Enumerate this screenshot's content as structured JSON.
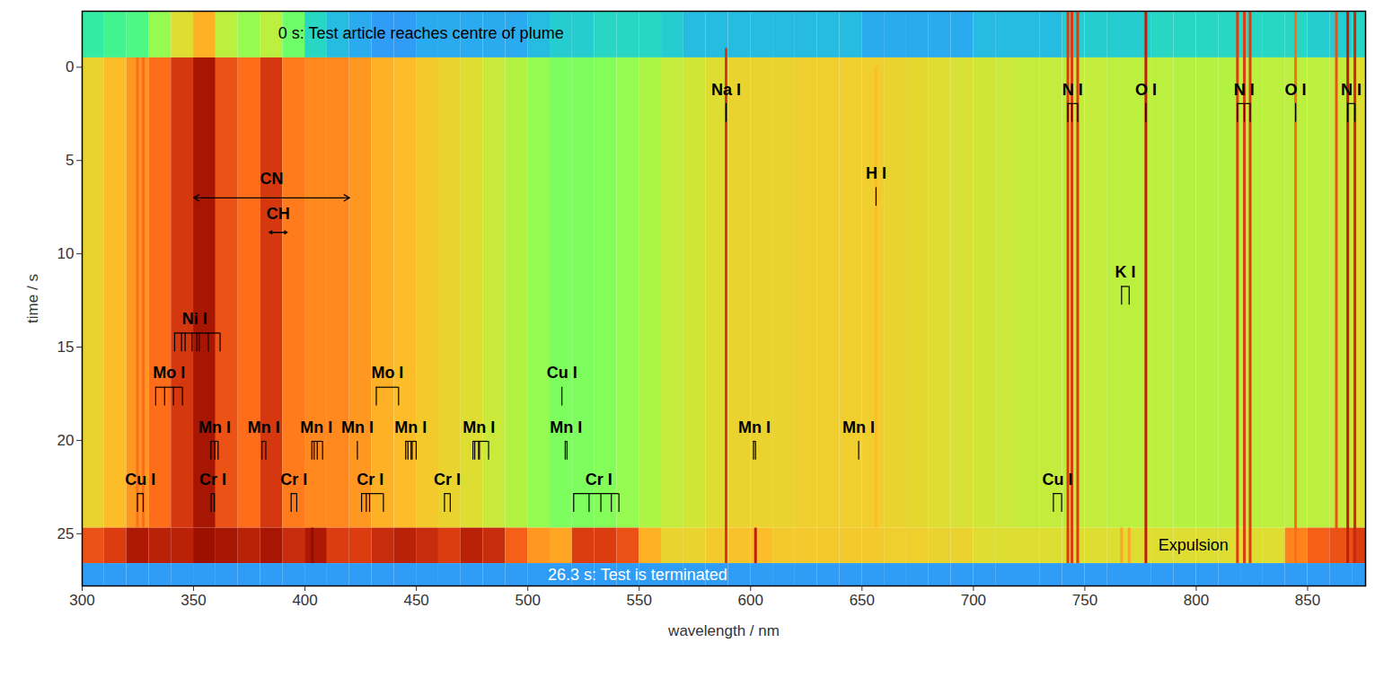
{
  "chart_data": {
    "type": "heatmap",
    "x_label": "wavelength / nm",
    "y_label": "time / s",
    "xlim": [
      300,
      876
    ],
    "xticks": [
      300,
      350,
      400,
      450,
      500,
      550,
      600,
      650,
      700,
      750,
      800,
      850
    ],
    "ylim": [
      -3,
      27.8
    ],
    "yticks": [
      0,
      5,
      10,
      15,
      20,
      25
    ],
    "zlim": [
      0,
      1
    ],
    "wavelength_bins": [
      300,
      310,
      320,
      330,
      340,
      350,
      360,
      370,
      380,
      390,
      400,
      410,
      420,
      430,
      440,
      450,
      460,
      470,
      480,
      490,
      500,
      510,
      520,
      530,
      540,
      550,
      560,
      570,
      580,
      590,
      600,
      610,
      620,
      630,
      640,
      650,
      660,
      670,
      680,
      690,
      700,
      710,
      720,
      730,
      740,
      750,
      760,
      770,
      780,
      790,
      800,
      810,
      820,
      830,
      840,
      850,
      860,
      870,
      876
    ],
    "segments": [
      {
        "t0": -3,
        "t1": -0.5,
        "values": [
          0.35,
          0.38,
          0.4,
          0.5,
          0.6,
          0.68,
          0.55,
          0.5,
          0.55,
          0.45,
          0.3,
          0.25,
          0.22,
          0.2,
          0.2,
          0.22,
          0.22,
          0.22,
          0.22,
          0.22,
          0.25,
          0.28,
          0.28,
          0.3,
          0.3,
          0.3,
          0.28,
          0.25,
          0.25,
          0.25,
          0.25,
          0.25,
          0.25,
          0.25,
          0.25,
          0.22,
          0.22,
          0.22,
          0.22,
          0.22,
          0.25,
          0.25,
          0.25,
          0.25,
          0.28,
          0.28,
          0.28,
          0.28,
          0.3,
          0.3,
          0.3,
          0.3,
          0.3,
          0.3,
          0.3,
          0.28,
          0.28,
          0.3
        ]
      },
      {
        "t0": -0.5,
        "t1": 24.7,
        "values": [
          0.62,
          0.66,
          0.72,
          0.78,
          0.86,
          0.93,
          0.82,
          0.78,
          0.86,
          0.76,
          0.74,
          0.74,
          0.72,
          0.68,
          0.66,
          0.64,
          0.62,
          0.6,
          0.57,
          0.54,
          0.5,
          0.47,
          0.47,
          0.48,
          0.5,
          0.53,
          0.56,
          0.58,
          0.6,
          0.62,
          0.62,
          0.62,
          0.63,
          0.63,
          0.63,
          0.63,
          0.62,
          0.61,
          0.6,
          0.59,
          0.58,
          0.57,
          0.56,
          0.56,
          0.56,
          0.56,
          0.55,
          0.55,
          0.55,
          0.54,
          0.54,
          0.54,
          0.55,
          0.55,
          0.55,
          0.55,
          0.56,
          0.6
        ]
      },
      {
        "t0": 24.7,
        "t1": 26.6,
        "values": [
          0.82,
          0.85,
          0.92,
          0.9,
          0.9,
          0.95,
          0.93,
          0.9,
          0.93,
          0.88,
          0.92,
          0.85,
          0.85,
          0.88,
          0.9,
          0.88,
          0.85,
          0.9,
          0.88,
          0.8,
          0.72,
          0.7,
          0.85,
          0.85,
          0.82,
          0.68,
          0.62,
          0.62,
          0.64,
          0.65,
          0.66,
          0.64,
          0.64,
          0.64,
          0.64,
          0.64,
          0.63,
          0.63,
          0.62,
          0.62,
          0.6,
          0.6,
          0.6,
          0.6,
          0.6,
          0.6,
          0.6,
          0.6,
          0.6,
          0.6,
          0.6,
          0.6,
          0.6,
          0.6,
          0.75,
          0.8,
          0.82,
          0.85
        ]
      },
      {
        "t0": 26.6,
        "t1": 27.8,
        "values": [
          0.2,
          0.2,
          0.2,
          0.2,
          0.2,
          0.2,
          0.2,
          0.2,
          0.2,
          0.2,
          0.2,
          0.2,
          0.2,
          0.2,
          0.2,
          0.2,
          0.2,
          0.2,
          0.2,
          0.2,
          0.2,
          0.2,
          0.2,
          0.2,
          0.2,
          0.2,
          0.2,
          0.2,
          0.2,
          0.2,
          0.2,
          0.2,
          0.2,
          0.2,
          0.2,
          0.2,
          0.2,
          0.2,
          0.2,
          0.2,
          0.2,
          0.2,
          0.2,
          0.2,
          0.2,
          0.2,
          0.2,
          0.2,
          0.2,
          0.2,
          0.2,
          0.2,
          0.2,
          0.2,
          0.2,
          0.2,
          0.2,
          0.2
        ]
      }
    ],
    "lines": [
      {
        "wavelength": 324.8,
        "t0": -0.5,
        "t1": 24.7,
        "value": 0.78
      },
      {
        "wavelength": 327.4,
        "t0": -0.5,
        "t1": 24.7,
        "value": 0.78
      },
      {
        "wavelength": 403.3,
        "t0": 24.7,
        "t1": 26.6,
        "value": 0.98
      },
      {
        "wavelength": 589.0,
        "t0": -1,
        "t1": 26.6,
        "value": 0.86
      },
      {
        "wavelength": 602.2,
        "t0": 24.7,
        "t1": 26.6,
        "value": 0.9
      },
      {
        "wavelength": 656.3,
        "t0": 0,
        "t1": 24.7,
        "value": 0.66
      },
      {
        "wavelength": 742.4,
        "t0": -3,
        "t1": 26.6,
        "value": 0.85
      },
      {
        "wavelength": 744.2,
        "t0": -3,
        "t1": 26.6,
        "value": 0.85
      },
      {
        "wavelength": 746.8,
        "t0": -3,
        "t1": 26.6,
        "value": 0.85
      },
      {
        "wavelength": 766.5,
        "t0": 24.7,
        "t1": 26.6,
        "value": 0.7
      },
      {
        "wavelength": 769.9,
        "t0": 24.7,
        "t1": 26.6,
        "value": 0.7
      },
      {
        "wavelength": 777.4,
        "t0": -3,
        "t1": 26.6,
        "value": 0.9
      },
      {
        "wavelength": 818.5,
        "t0": -3,
        "t1": 26.6,
        "value": 0.85
      },
      {
        "wavelength": 821.6,
        "t0": -3,
        "t1": 26.6,
        "value": 0.85
      },
      {
        "wavelength": 824.2,
        "t0": -3,
        "t1": 26.6,
        "value": 0.85
      },
      {
        "wavelength": 844.6,
        "t0": -3,
        "t1": 26.6,
        "value": 0.78
      },
      {
        "wavelength": 862.9,
        "t0": -3,
        "t1": 26.6,
        "value": 0.82
      },
      {
        "wavelength": 868.0,
        "t0": -3,
        "t1": 26.6,
        "value": 0.9
      },
      {
        "wavelength": 871.2,
        "t0": -3,
        "t1": 26.6,
        "value": 0.88
      }
    ],
    "annotations": [
      {
        "label": "Na I",
        "t": 1.2,
        "wavelengths": [
          589.0
        ]
      },
      {
        "label": "N I",
        "t": 1.2,
        "wavelengths": [
          742.4,
          744.2,
          746.8
        ]
      },
      {
        "label": "O I",
        "t": 1.2,
        "wavelengths": [
          777.4
        ]
      },
      {
        "label": "N I",
        "t": 1.2,
        "wavelengths": [
          818.5,
          821.6,
          824.2
        ]
      },
      {
        "label": "O I",
        "t": 1.2,
        "wavelengths": [
          844.6
        ]
      },
      {
        "label": "N I",
        "t": 1.2,
        "wavelengths": [
          868.0,
          871.2
        ]
      },
      {
        "label": "H I",
        "t": 5.7,
        "wavelengths": [
          656.3
        ]
      },
      {
        "label": "K I",
        "t": 11.0,
        "wavelengths": [
          766.5,
          769.9
        ]
      },
      {
        "label": "Ni I",
        "t": 13.5,
        "wavelengths": [
          341.5,
          344.6,
          346.2,
          349.3,
          351.5,
          352.5,
          356.6,
          361.9
        ]
      },
      {
        "label": "Mo I",
        "t": 16.4,
        "wavelengths": [
          333.0,
          337.0,
          341.0,
          345.0
        ]
      },
      {
        "label": "Mo I",
        "t": 16.4,
        "wavelengths": [
          432.0,
          442.0
        ]
      },
      {
        "label": "Cu I",
        "t": 16.4,
        "wavelengths": [
          515.3
        ]
      },
      {
        "label": "Mn I",
        "t": 19.3,
        "wavelengths": [
          357.8,
          359.5,
          361.0
        ]
      },
      {
        "label": "Mn I",
        "t": 19.3,
        "wavelengths": [
          380.7,
          382.4
        ]
      },
      {
        "label": "Mn I",
        "t": 19.3,
        "wavelengths": [
          403.1,
          404.1,
          405.5,
          407.9
        ]
      },
      {
        "label": "Mn I",
        "t": 19.3,
        "wavelengths": [
          423.5
        ]
      },
      {
        "label": "Mn I",
        "t": 19.3,
        "wavelengths": [
          445.2,
          446.2,
          447.6,
          448.1,
          449.9
        ]
      },
      {
        "label": "Mn I",
        "t": 19.3,
        "wavelengths": [
          475.4,
          476.2,
          477.9,
          478.3,
          482.4
        ]
      },
      {
        "label": "Mn I",
        "t": 19.3,
        "wavelengths": [
          516.8,
          517.6
        ]
      },
      {
        "label": "Mn I",
        "t": 19.3,
        "wavelengths": [
          601.3,
          602.2
        ]
      },
      {
        "label": "Mn I",
        "t": 19.3,
        "wavelengths": [
          648.5
        ]
      },
      {
        "label": "Cu I",
        "t": 22.1,
        "wavelengths": [
          324.8,
          327.4
        ]
      },
      {
        "label": "Cr I",
        "t": 22.1,
        "wavelengths": [
          357.9,
          359.3
        ]
      },
      {
        "label": "Cr I",
        "t": 22.1,
        "wavelengths": [
          393.8,
          396.3
        ]
      },
      {
        "label": "Cr I",
        "t": 22.1,
        "wavelengths": [
          425.4,
          427.5,
          429.0,
          435.2
        ]
      },
      {
        "label": "Cr I",
        "t": 22.1,
        "wavelengths": [
          462.6,
          465.2
        ]
      },
      {
        "label": "Cr I",
        "t": 22.1,
        "wavelengths": [
          520.6,
          527.5,
          532.8,
          537.5,
          540.9
        ]
      },
      {
        "label": "Cu I",
        "t": 22.1,
        "wavelengths": [
          735.9,
          739.6
        ]
      }
    ],
    "arrows": [
      {
        "label": "CN",
        "x0": 350,
        "x1": 420,
        "t": 7.0
      },
      {
        "label": "CH",
        "x0": 384,
        "x1": 392,
        "t": 8.85
      }
    ],
    "events": [
      {
        "text": "0 s: Test article reaches centre of plume",
        "wavelength": 388,
        "t": -1.8,
        "color": "black"
      },
      {
        "text": "Expulsion",
        "wavelength": 783,
        "t": 25.6,
        "color": "black"
      },
      {
        "text": "26.3 s: Test is terminated",
        "wavelength": 509,
        "t": 27.2,
        "color": "white"
      }
    ]
  }
}
